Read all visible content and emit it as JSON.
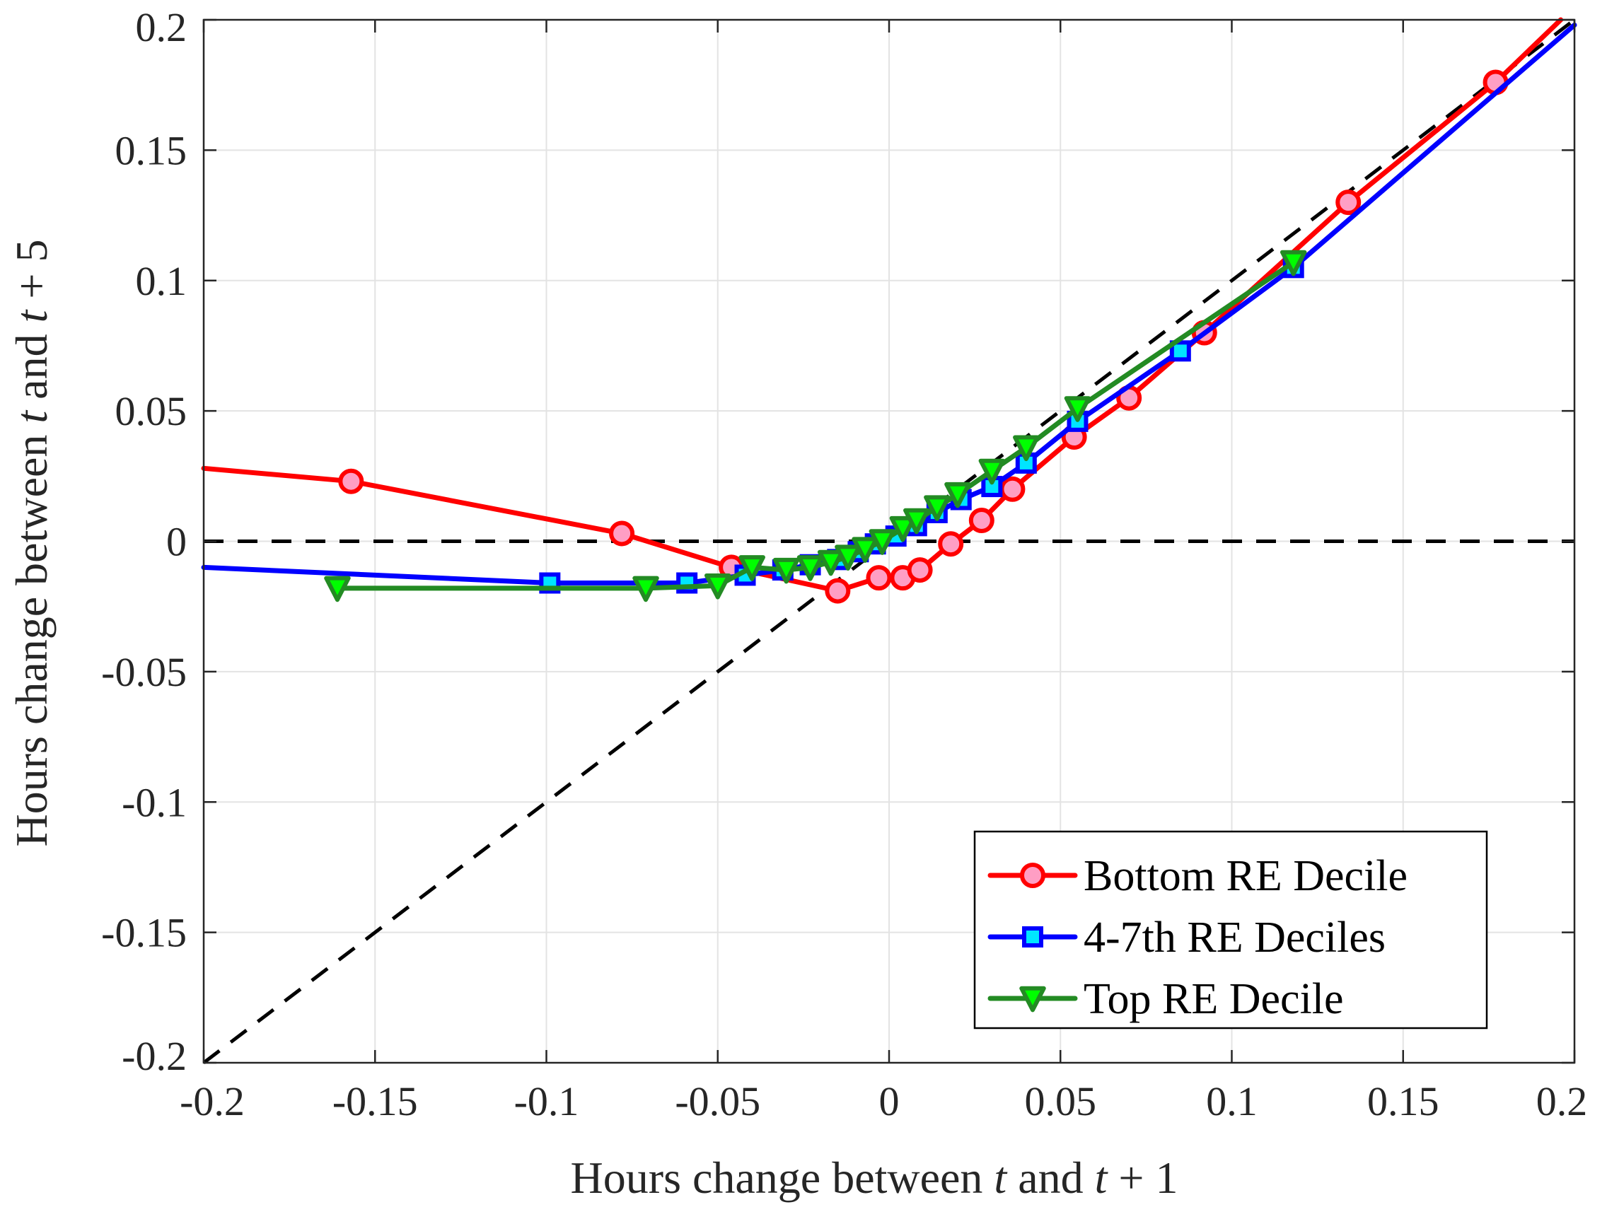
{
  "chart_data": {
    "type": "line",
    "title": "",
    "xlabel": {
      "prefix": "Hours change between ",
      "var1": "t",
      "mid": " and ",
      "var2": "t",
      "suffix": " + 1"
    },
    "ylabel": {
      "prefix": "Hours change between ",
      "var1": "t",
      "mid": " and ",
      "var2": "t",
      "suffix": " + 5"
    },
    "xlim": [
      -0.2,
      0.2
    ],
    "ylim": [
      -0.2,
      0.2
    ],
    "xticks": [
      -0.2,
      -0.15,
      -0.1,
      -0.05,
      0,
      0.05,
      0.1,
      0.15,
      0.2
    ],
    "yticks": [
      -0.2,
      -0.15,
      -0.1,
      -0.05,
      0,
      0.05,
      0.1,
      0.15,
      0.2
    ],
    "xtick_labels": [
      "-0.2",
      "-0.15",
      "-0.1",
      "-0.05",
      "0",
      "0.05",
      "0.1",
      "0.15",
      "0.2"
    ],
    "ytick_labels": [
      "-0.2",
      "-0.15",
      "-0.1",
      "-0.05",
      "0",
      "0.05",
      "0.1",
      "0.15",
      "0.2"
    ],
    "grid": true,
    "legend_position": "bottom-right",
    "reference_lines": [
      {
        "name": "zero-line",
        "style": "dashed",
        "color": "#000000",
        "points": [
          [
            -0.2,
            0
          ],
          [
            0.2,
            0
          ]
        ]
      },
      {
        "name": "45-degree-line",
        "style": "dashed",
        "color": "#000000",
        "points": [
          [
            -0.2,
            -0.2
          ],
          [
            0.2,
            0.2
          ]
        ]
      }
    ],
    "series": [
      {
        "name": "Bottom RE Decile",
        "color": "#ff0000",
        "marker": "circle",
        "marker_face": "#ff9ec4",
        "line_start": [
          -0.2,
          0.028
        ],
        "line_end": [
          0.196,
          0.2
        ],
        "points": [
          [
            -0.157,
            0.023
          ],
          [
            -0.078,
            0.003
          ],
          [
            -0.046,
            -0.01
          ],
          [
            -0.015,
            -0.019
          ],
          [
            -0.003,
            -0.014
          ],
          [
            0.004,
            -0.014
          ],
          [
            0.009,
            -0.011
          ],
          [
            0.018,
            -0.001
          ],
          [
            0.027,
            0.008
          ],
          [
            0.036,
            0.02
          ],
          [
            0.054,
            0.04
          ],
          [
            0.07,
            0.055
          ],
          [
            0.092,
            0.08
          ],
          [
            0.134,
            0.13
          ],
          [
            0.177,
            0.176
          ]
        ]
      },
      {
        "name": "4-7th RE Deciles",
        "color": "#0000ff",
        "marker": "square",
        "marker_face": "#00e5ff",
        "line_start": [
          -0.2,
          -0.01
        ],
        "line_end": [
          0.2,
          0.198
        ],
        "points": [
          [
            -0.099,
            -0.016
          ],
          [
            -0.059,
            -0.016
          ],
          [
            -0.042,
            -0.013
          ],
          [
            -0.031,
            -0.011
          ],
          [
            -0.023,
            -0.009
          ],
          [
            -0.015,
            -0.007
          ],
          [
            -0.009,
            -0.004
          ],
          [
            -0.004,
            -0.001
          ],
          [
            0.002,
            0.002
          ],
          [
            0.008,
            0.006
          ],
          [
            0.014,
            0.011
          ],
          [
            0.021,
            0.016
          ],
          [
            0.03,
            0.021
          ],
          [
            0.04,
            0.03
          ],
          [
            0.055,
            0.046
          ],
          [
            0.085,
            0.073
          ],
          [
            0.118,
            0.105
          ]
        ]
      },
      {
        "name": "Top RE Decile",
        "color": "#238b23",
        "marker": "triangle-down",
        "marker_face": "#00ff00",
        "line_start": null,
        "line_end": null,
        "points": [
          [
            -0.161,
            -0.018
          ],
          [
            -0.071,
            -0.018
          ],
          [
            -0.05,
            -0.017
          ],
          [
            -0.04,
            -0.01
          ],
          [
            -0.03,
            -0.011
          ],
          [
            -0.023,
            -0.01
          ],
          [
            -0.017,
            -0.008
          ],
          [
            -0.012,
            -0.006
          ],
          [
            -0.007,
            -0.003
          ],
          [
            -0.002,
            0.0
          ],
          [
            0.004,
            0.005
          ],
          [
            0.008,
            0.008
          ],
          [
            0.014,
            0.013
          ],
          [
            0.02,
            0.018
          ],
          [
            0.03,
            0.027
          ],
          [
            0.04,
            0.036
          ],
          [
            0.055,
            0.051
          ],
          [
            0.118,
            0.107
          ]
        ]
      }
    ]
  }
}
